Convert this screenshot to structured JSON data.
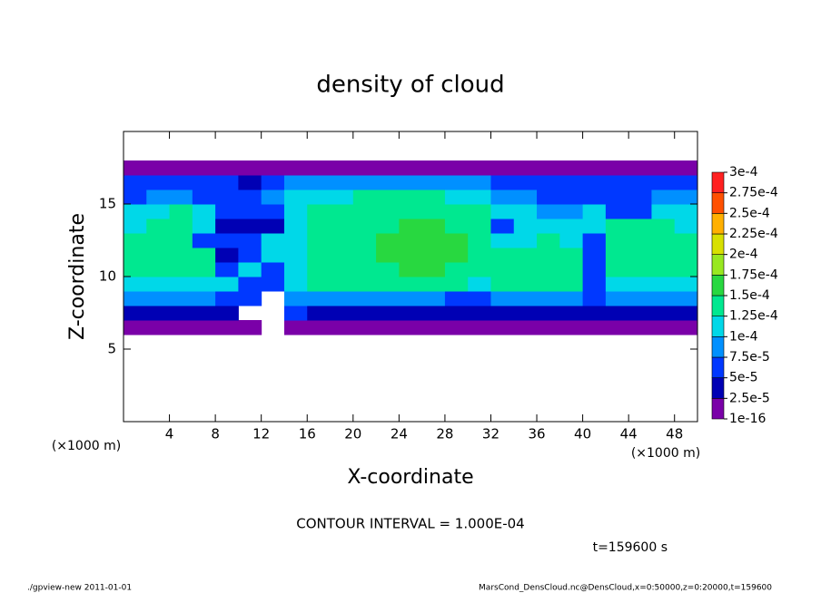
{
  "chart_data": {
    "type": "heatmap",
    "title": "density of cloud",
    "xlabel": "X-coordinate",
    "ylabel": "Z-coordinate",
    "axis_unit": "(×1000 m)",
    "xlim": [
      0,
      50
    ],
    "ylim": [
      0,
      20
    ],
    "xticks": [
      4,
      8,
      12,
      16,
      20,
      24,
      28,
      32,
      36,
      40,
      44,
      48
    ],
    "yticks": [
      5,
      10,
      15
    ],
    "x": [
      1,
      3,
      5,
      7,
      9,
      11,
      13,
      15,
      17,
      19,
      21,
      23,
      25,
      27,
      29,
      31,
      33,
      35,
      37,
      39,
      41,
      43,
      45,
      47,
      49
    ],
    "z": [
      6.5,
      7.5,
      8.5,
      9.5,
      10.5,
      11.5,
      12.5,
      13.5,
      14.5,
      15.5,
      16.5,
      17.5
    ],
    "values": [
      [
        2e-05,
        2e-05,
        2e-05,
        2e-05,
        2e-05,
        2e-05,
        null,
        2e-05,
        2e-05,
        2e-05,
        2e-05,
        2e-05,
        2e-05,
        2e-05,
        2e-05,
        2e-05,
        2e-05,
        2e-05,
        2e-05,
        2e-05,
        2e-05,
        2e-05,
        2e-05,
        2e-05,
        2e-05
      ],
      [
        4e-05,
        4e-05,
        4e-05,
        4e-05,
        4e-05,
        null,
        null,
        6e-05,
        4e-05,
        4e-05,
        4e-05,
        4e-05,
        4e-05,
        4e-05,
        4e-05,
        4e-05,
        4e-05,
        4e-05,
        4e-05,
        4e-05,
        4e-05,
        4e-05,
        4e-05,
        4e-05,
        4e-05
      ],
      [
        9e-05,
        9e-05,
        9e-05,
        9e-05,
        6e-05,
        6e-05,
        null,
        9e-05,
        9e-05,
        9e-05,
        9e-05,
        9e-05,
        9e-05,
        9e-05,
        6e-05,
        6e-05,
        9e-05,
        9e-05,
        9e-05,
        9e-05,
        6e-05,
        9e-05,
        9e-05,
        9e-05,
        9e-05
      ],
      [
        0.00011,
        0.00011,
        0.00011,
        0.00011,
        0.00011,
        6e-05,
        6e-05,
        0.00011,
        0.000135,
        0.000135,
        0.000135,
        0.000135,
        0.000135,
        0.000135,
        0.000135,
        0.00011,
        0.000135,
        0.000135,
        0.000135,
        0.000135,
        6e-05,
        0.00011,
        0.00011,
        0.00011,
        0.00011
      ],
      [
        0.000135,
        0.000135,
        0.000135,
        0.000135,
        6e-05,
        0.00011,
        6e-05,
        0.00011,
        0.000135,
        0.000135,
        0.000135,
        0.000135,
        0.00016,
        0.00016,
        0.000135,
        0.000135,
        0.000135,
        0.000135,
        0.000135,
        0.000135,
        6e-05,
        0.000135,
        0.000135,
        0.000135,
        0.000135
      ],
      [
        0.000135,
        0.000135,
        0.000135,
        0.000135,
        4e-05,
        6e-05,
        0.00011,
        0.00011,
        0.000135,
        0.000135,
        0.000135,
        0.00016,
        0.00016,
        0.00016,
        0.00016,
        0.000135,
        0.000135,
        0.000135,
        0.000135,
        0.000135,
        6e-05,
        0.000135,
        0.000135,
        0.000135,
        0.000135
      ],
      [
        0.000135,
        0.000135,
        0.000135,
        6e-05,
        6e-05,
        6e-05,
        0.00011,
        0.00011,
        0.000135,
        0.000135,
        0.000135,
        0.00016,
        0.00016,
        0.00016,
        0.00016,
        0.000135,
        0.00011,
        0.00011,
        0.000135,
        0.00011,
        6e-05,
        0.000135,
        0.000135,
        0.000135,
        0.000135
      ],
      [
        0.00011,
        0.000135,
        0.000135,
        0.00011,
        4e-05,
        4e-05,
        4e-05,
        0.00011,
        0.000135,
        0.000135,
        0.000135,
        0.000135,
        0.00016,
        0.00016,
        0.000135,
        0.000135,
        6e-05,
        0.00011,
        0.00011,
        0.00011,
        0.00011,
        0.000135,
        0.000135,
        0.000135,
        0.00011
      ],
      [
        0.00011,
        0.00011,
        0.000135,
        0.00011,
        6e-05,
        6e-05,
        6e-05,
        0.00011,
        0.000135,
        0.000135,
        0.000135,
        0.000135,
        0.000135,
        0.000135,
        0.000135,
        0.000135,
        0.00011,
        0.00011,
        9e-05,
        9e-05,
        0.00011,
        6e-05,
        6e-05,
        0.00011,
        0.00011
      ],
      [
        6e-05,
        9e-05,
        9e-05,
        6e-05,
        6e-05,
        6e-05,
        9e-05,
        0.00011,
        0.00011,
        0.00011,
        0.000135,
        0.000135,
        0.000135,
        0.000135,
        0.00011,
        0.00011,
        9e-05,
        9e-05,
        6e-05,
        6e-05,
        6e-05,
        6e-05,
        6e-05,
        9e-05,
        9e-05
      ],
      [
        6e-05,
        6e-05,
        6e-05,
        6e-05,
        6e-05,
        4e-05,
        6e-05,
        9e-05,
        9e-05,
        9e-05,
        9e-05,
        9e-05,
        9e-05,
        9e-05,
        9e-05,
        9e-05,
        6e-05,
        6e-05,
        6e-05,
        6e-05,
        6e-05,
        6e-05,
        6e-05,
        6e-05,
        6e-05
      ],
      [
        2e-05,
        2e-05,
        2e-05,
        2e-05,
        2e-05,
        2e-05,
        2e-05,
        2e-05,
        2e-05,
        2e-05,
        2e-05,
        2e-05,
        2e-05,
        2e-05,
        2e-05,
        2e-05,
        2e-05,
        2e-05,
        2e-05,
        2e-05,
        2e-05,
        2e-05,
        2e-05,
        2e-05,
        2e-05
      ]
    ],
    "colorbar": {
      "levels": [
        {
          "value": 1e-16,
          "label": "1e-16"
        },
        {
          "value": 2.5e-05,
          "label": "2.5e-5"
        },
        {
          "value": 5e-05,
          "label": "5e-5"
        },
        {
          "value": 7.5e-05,
          "label": "7.5e-5"
        },
        {
          "value": 0.0001,
          "label": "1e-4"
        },
        {
          "value": 0.000125,
          "label": "1.25e-4"
        },
        {
          "value": 0.00015,
          "label": "1.5e-4"
        },
        {
          "value": 0.000175,
          "label": "1.75e-4"
        },
        {
          "value": 0.0002,
          "label": "2e-4"
        },
        {
          "value": 0.000225,
          "label": "2.25e-4"
        },
        {
          "value": 0.00025,
          "label": "2.5e-4"
        },
        {
          "value": 0.000275,
          "label": "2.75e-4"
        },
        {
          "value": 0.0003,
          "label": "3e-4"
        }
      ],
      "colors": [
        "#7a00a8",
        "#0000b4",
        "#0038ff",
        "#0090ff",
        "#00d8e8",
        "#00e890",
        "#28d840",
        "#98e820",
        "#d8e000",
        "#ffb000",
        "#ff5000",
        "#ff2020",
        "#ff8c8c"
      ]
    },
    "contour_interval": "CONTOUR INTERVAL = 1.000E-04",
    "time_label": "t=159600 s",
    "footer_left": "./gpview-new   2011-01-01",
    "footer_right": "MarsCond_DensCloud.nc@DensCloud,x=0:50000,z=0:20000,t=159600"
  }
}
